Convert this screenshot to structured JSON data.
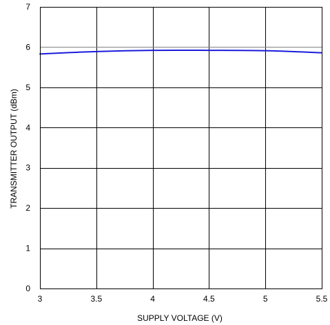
{
  "chart_data": {
    "type": "line",
    "title": "",
    "xlabel": "SUPPLY VOLTAGE (V)",
    "ylabel": "TRANSMITTER OUTPUT (dBm)",
    "xlim": [
      3,
      5.5
    ],
    "ylim": [
      0,
      7
    ],
    "x_ticks": [
      3,
      3.5,
      4,
      4.5,
      5,
      5.5
    ],
    "x_tick_labels": [
      "3",
      "3.5",
      "4",
      "4.5",
      "5",
      "5.5"
    ],
    "y_ticks": [
      0,
      1,
      2,
      3,
      4,
      5,
      6,
      7
    ],
    "y_tick_labels": [
      "0",
      "1",
      "2",
      "3",
      "4",
      "5",
      "6",
      "7"
    ],
    "grid": true,
    "legend": "none",
    "reference_line": {
      "y": 6,
      "color": "#808080"
    },
    "series": [
      {
        "color": "#1a1adb",
        "x": [
          3,
          3.5,
          4,
          4.5,
          5,
          5.5
        ],
        "y": [
          5.83,
          5.89,
          5.92,
          5.92,
          5.91,
          5.86
        ]
      }
    ]
  }
}
